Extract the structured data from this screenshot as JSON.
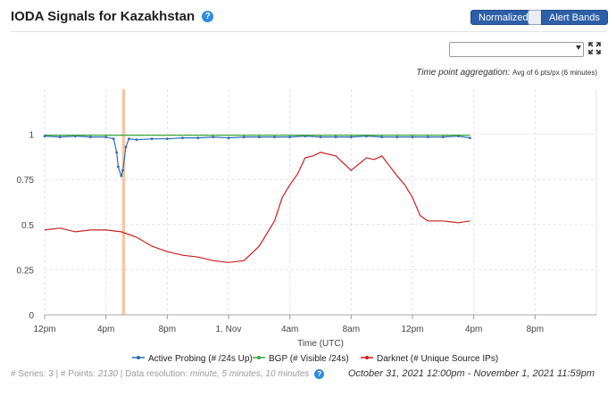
{
  "header": {
    "title": "IODA Signals for Kazakhstan",
    "normalized_label": "Normalized",
    "alert_bands_label": "Alert Bands"
  },
  "aggregation": {
    "label": "Time point aggregation:",
    "value": "Avg of 6 pts/px (6 minutes)"
  },
  "footer": {
    "series_prefix": "# Series:",
    "series_count": "3",
    "points_prefix": "| # Points:",
    "points_count": "2130",
    "resolution_prefix": "| Data resolution:",
    "resolution_value": "minute, 5 minutes, 10 minutes",
    "time_range": "October 31, 2021 12:00pm - November 1, 2021 11:59pm"
  },
  "colors": {
    "active_probing": "#2c6cb4",
    "bgp": "#3aa83a",
    "darknet": "#cc1f1f",
    "alert_band": "#f6c7a3",
    "button": "#2d5fa8"
  },
  "chart_data": {
    "type": "line",
    "xlabel": "Time (UTC)",
    "ylabel": "",
    "x_ticks": [
      "12pm",
      "4pm",
      "8pm",
      "1. Nov",
      "4am",
      "8am",
      "12pm",
      "4pm",
      "8pm"
    ],
    "x_tick_hours": [
      0,
      4,
      8,
      12,
      16,
      20,
      24,
      28,
      32
    ],
    "x_range_hours": [
      0,
      36
    ],
    "y_ticks": [
      "0",
      "0.25",
      "0.5",
      "0.75",
      "1"
    ],
    "y_tick_values": [
      0,
      0.25,
      0.5,
      0.75,
      1
    ],
    "ylim": [
      0,
      1.25
    ],
    "grid": true,
    "legend_position": "bottom",
    "alert_band_hours": [
      5.05,
      5.25
    ],
    "series": [
      {
        "name": "Active Probing (# /24s Up)",
        "x": [
          0,
          1,
          2,
          3,
          4,
          4.5,
          4.7,
          4.8,
          5.0,
          5.1,
          5.3,
          5.5,
          6,
          7,
          8,
          9,
          10,
          11,
          12,
          13,
          14,
          15,
          16,
          17,
          18,
          19,
          20,
          21,
          22,
          23,
          24,
          25,
          26,
          27,
          27.75
        ],
        "y": [
          0.99,
          0.985,
          0.99,
          0.985,
          0.985,
          0.975,
          0.9,
          0.82,
          0.77,
          0.8,
          0.93,
          0.975,
          0.97,
          0.975,
          0.975,
          0.98,
          0.98,
          0.985,
          0.98,
          0.985,
          0.985,
          0.985,
          0.985,
          0.99,
          0.985,
          0.985,
          0.985,
          0.99,
          0.985,
          0.985,
          0.985,
          0.985,
          0.985,
          0.99,
          0.98
        ]
      },
      {
        "name": "BGP (# Visible /24s)",
        "x": [
          0,
          27.75
        ],
        "y": [
          0.995,
          0.995
        ]
      },
      {
        "name": "Darknet (# Unique Source IPs)",
        "x": [
          0,
          1,
          2,
          3,
          4,
          5,
          6,
          7,
          8,
          9,
          10,
          11,
          12,
          13,
          14,
          15,
          15.5,
          16,
          16.5,
          17,
          17.5,
          18,
          19,
          20,
          21,
          21.5,
          22,
          23,
          23.5,
          24,
          24.5,
          25,
          26,
          27,
          27.75
        ],
        "y": [
          0.47,
          0.48,
          0.46,
          0.47,
          0.47,
          0.46,
          0.43,
          0.38,
          0.35,
          0.33,
          0.32,
          0.3,
          0.29,
          0.3,
          0.38,
          0.52,
          0.65,
          0.72,
          0.78,
          0.87,
          0.88,
          0.9,
          0.88,
          0.8,
          0.87,
          0.86,
          0.88,
          0.77,
          0.72,
          0.65,
          0.55,
          0.52,
          0.52,
          0.51,
          0.52
        ]
      }
    ]
  }
}
